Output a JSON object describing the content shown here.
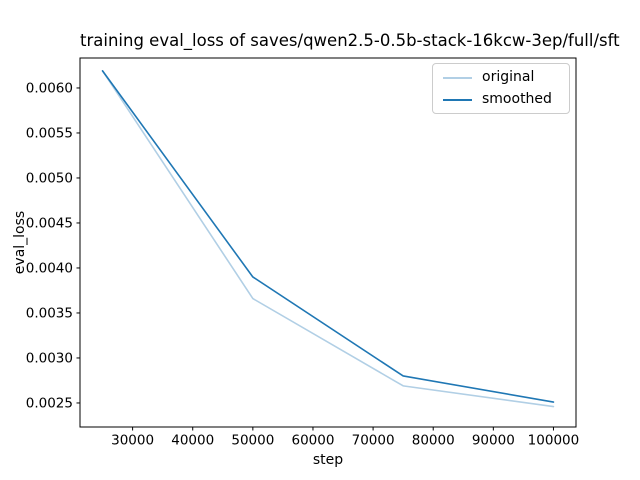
{
  "chart_data": {
    "type": "line",
    "title": "training eval_loss of saves/qwen2.5-0.5b-stack-16kcw-3ep/full/sft",
    "xlabel": "step",
    "ylabel": "eval_loss",
    "x": [
      25000,
      50000,
      75000,
      100000
    ],
    "series": [
      {
        "name": "original",
        "color": "#b1cfe5",
        "values": [
          0.00619,
          0.00366,
          0.00269,
          0.00246
        ]
      },
      {
        "name": "smoothed",
        "color": "#1f77b4",
        "values": [
          0.00619,
          0.0039,
          0.0028,
          0.00251
        ]
      }
    ],
    "xticks": [
      30000,
      40000,
      50000,
      60000,
      70000,
      80000,
      90000,
      100000
    ],
    "yticks": [
      0.0025,
      0.003,
      0.0035,
      0.004,
      0.0045,
      0.005,
      0.0055,
      0.006
    ],
    "xlim": [
      21250,
      103750
    ],
    "ylim": [
      0.002233,
      0.006333
    ],
    "grid": false,
    "legend_position": "upper right",
    "line_width": 1.6,
    "background": "#ffffff",
    "spine_color": "#000000"
  }
}
